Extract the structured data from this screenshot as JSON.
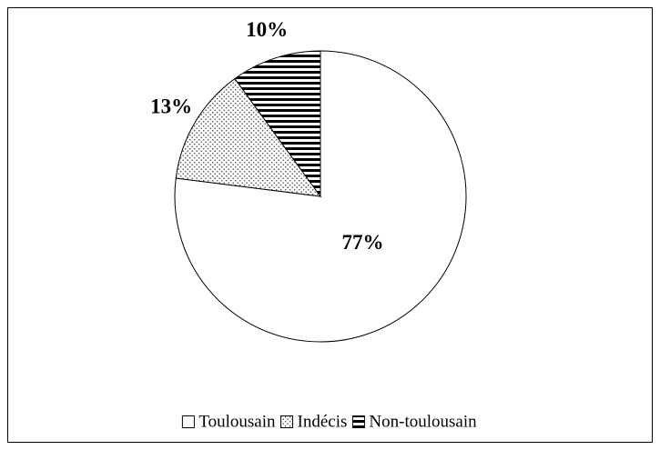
{
  "chart_data": {
    "type": "pie",
    "categories": [
      "Toulousain",
      "Indécis",
      "Non-toulousain"
    ],
    "values": [
      77,
      13,
      10
    ],
    "value_labels": [
      "77%",
      "13%",
      "10%"
    ],
    "patterns": [
      "solid",
      "dots",
      "horizontal-lines"
    ],
    "color": "#000000",
    "legend": "bottom"
  }
}
